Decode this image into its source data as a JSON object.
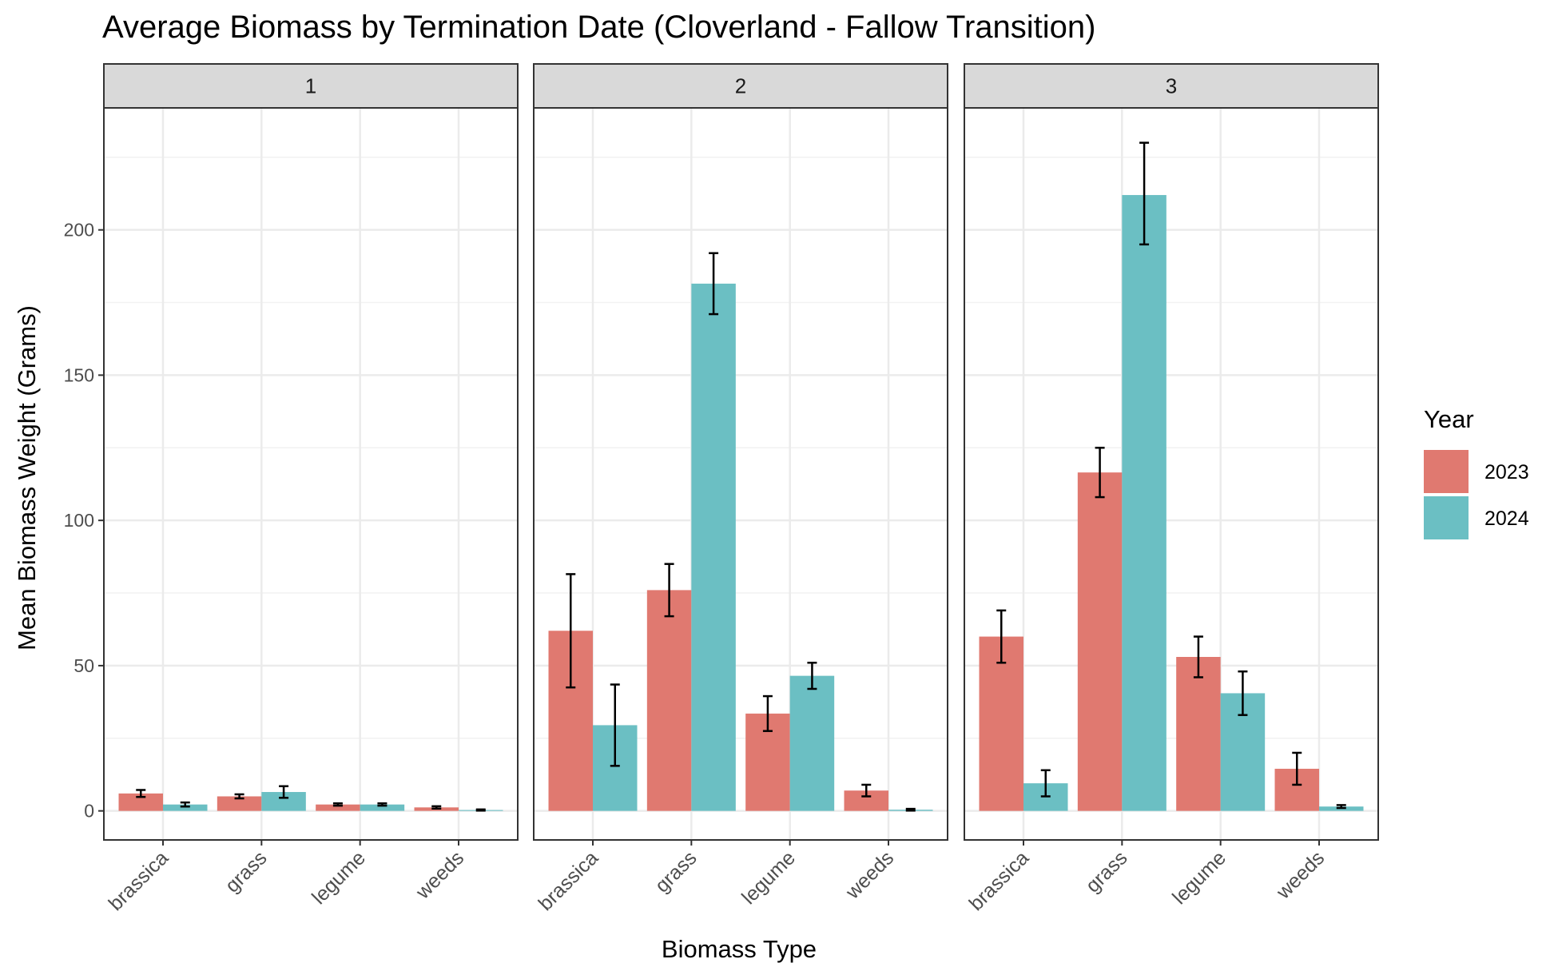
{
  "chart_data": {
    "type": "bar",
    "title": "Average Biomass by Termination Date (Cloverland - Fallow Transition)",
    "xlabel": "Biomass Type",
    "ylabel": "Mean Biomass Weight (Grams)",
    "ylim": [
      -10,
      242
    ],
    "y_ticks": [
      0,
      50,
      100,
      150,
      200
    ],
    "grid": true,
    "legend": {
      "title": "Year",
      "placement": "right"
    },
    "categories": [
      "brassica",
      "grass",
      "legume",
      "weeds"
    ],
    "series_colors": {
      "2023": "#E07970",
      "2024": "#6BBFC3"
    },
    "facets": [
      {
        "label": "1",
        "series": [
          {
            "name": "2023",
            "values": [
              6,
              5,
              2.2,
              1.2
            ],
            "err_low": [
              4.8,
              4.3,
              1.8,
              0.8
            ],
            "err_high": [
              7.2,
              5.7,
              2.6,
              1.6
            ]
          },
          {
            "name": "2024",
            "values": [
              2.2,
              6.5,
              2.2,
              0.3
            ],
            "err_low": [
              1.5,
              4.5,
              1.8,
              0.1
            ],
            "err_high": [
              2.9,
              8.5,
              2.6,
              0.5
            ]
          }
        ]
      },
      {
        "label": "2",
        "series": [
          {
            "name": "2023",
            "values": [
              62,
              76,
              33.5,
              7
            ],
            "err_low": [
              42.5,
              67,
              27.5,
              5
            ],
            "err_high": [
              81.5,
              85,
              39.5,
              9
            ]
          },
          {
            "name": "2024",
            "values": [
              29.5,
              181.5,
              46.5,
              0.4
            ],
            "err_low": [
              15.5,
              171,
              42,
              0.1
            ],
            "err_high": [
              43.5,
              192,
              51,
              0.7
            ]
          }
        ]
      },
      {
        "label": "3",
        "series": [
          {
            "name": "2023",
            "values": [
              60,
              116.5,
              53,
              14.5
            ],
            "err_low": [
              51,
              108,
              46,
              9
            ],
            "err_high": [
              69,
              125,
              60,
              20
            ]
          },
          {
            "name": "2024",
            "values": [
              9.5,
              212,
              40.5,
              1.5
            ],
            "err_low": [
              5,
              195,
              33,
              1
            ],
            "err_high": [
              14,
              230,
              48,
              2
            ]
          }
        ]
      }
    ]
  }
}
